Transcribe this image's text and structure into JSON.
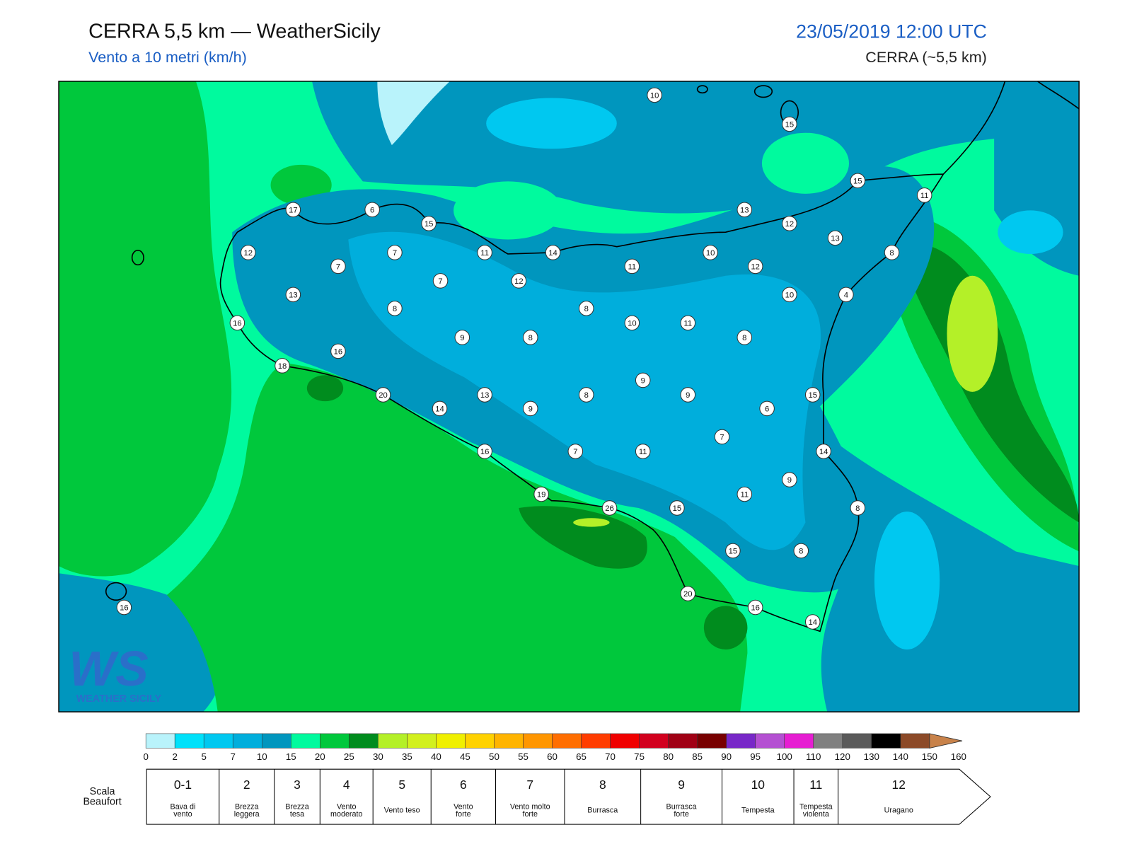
{
  "header": {
    "title": "CERRA 5,5 km — WeatherSicily",
    "subtitle": "Vento a 10 metri (km/h)",
    "datetime": "23/05/2019 12:00 UTC",
    "model": "CERRA (~5,5 km)"
  },
  "map": {
    "stations": [
      10,
      15,
      15,
      11,
      17,
      6,
      15,
      13,
      12,
      13,
      12,
      7,
      11,
      14,
      11,
      10,
      12,
      8,
      7,
      7,
      12,
      13,
      10,
      4,
      16,
      8,
      8,
      10,
      11,
      9,
      8,
      8,
      16,
      18,
      9,
      20,
      13,
      8,
      9,
      15,
      14,
      9,
      6,
      7,
      16,
      7,
      11,
      14,
      9,
      19,
      11,
      26,
      15,
      8,
      15,
      8,
      20,
      16,
      14,
      16
    ],
    "logo": {
      "mark": "WS",
      "name": "WEATHER SICILY"
    }
  },
  "colorbar": {
    "ticks": [
      0,
      2,
      5,
      7,
      10,
      15,
      20,
      25,
      30,
      35,
      40,
      45,
      50,
      55,
      60,
      65,
      70,
      75,
      80,
      85,
      90,
      95,
      100,
      110,
      120,
      130,
      140,
      150,
      160
    ],
    "colors": [
      "#b9f3fb",
      "#00e1fa",
      "#00c8f0",
      "#00aedc",
      "#0096be",
      "#00fa9e",
      "#00c83c",
      "#008c1e",
      "#b4f028",
      "#d2f01e",
      "#f0f000",
      "#ffd200",
      "#ffb400",
      "#ff9600",
      "#ff6e00",
      "#ff3c00",
      "#f00000",
      "#d2001e",
      "#a00014",
      "#780000",
      "#7828c8",
      "#b450d2",
      "#e61ed2",
      "#808080",
      "#5a5a5a",
      "#000000",
      "#8c4a28",
      "#c8824a"
    ]
  },
  "beaufort": {
    "title": [
      "Scala",
      "Beaufort"
    ],
    "classes": [
      {
        "force": "0-1",
        "description": [
          "Bava di",
          "vento"
        ]
      },
      {
        "force": 2,
        "description": [
          "Brezza",
          "leggera"
        ]
      },
      {
        "force": 3,
        "description": [
          "Brezza",
          "tesa"
        ]
      },
      {
        "force": 4,
        "description": [
          "Vento",
          "moderato"
        ]
      },
      {
        "force": 5,
        "description": [
          "Vento teso"
        ]
      },
      {
        "force": 6,
        "description": [
          "Vento",
          "forte"
        ]
      },
      {
        "force": 7,
        "description": [
          "Vento molto",
          "forte"
        ]
      },
      {
        "force": 8,
        "description": [
          "Burrasca"
        ]
      },
      {
        "force": 9,
        "description": [
          "Burrasca",
          "forte"
        ]
      },
      {
        "force": 10,
        "description": [
          "Tempesta"
        ]
      },
      {
        "force": 11,
        "description": [
          "Tempesta",
          "violenta"
        ]
      },
      {
        "force": 12,
        "description": [
          "Uragano"
        ]
      }
    ]
  }
}
